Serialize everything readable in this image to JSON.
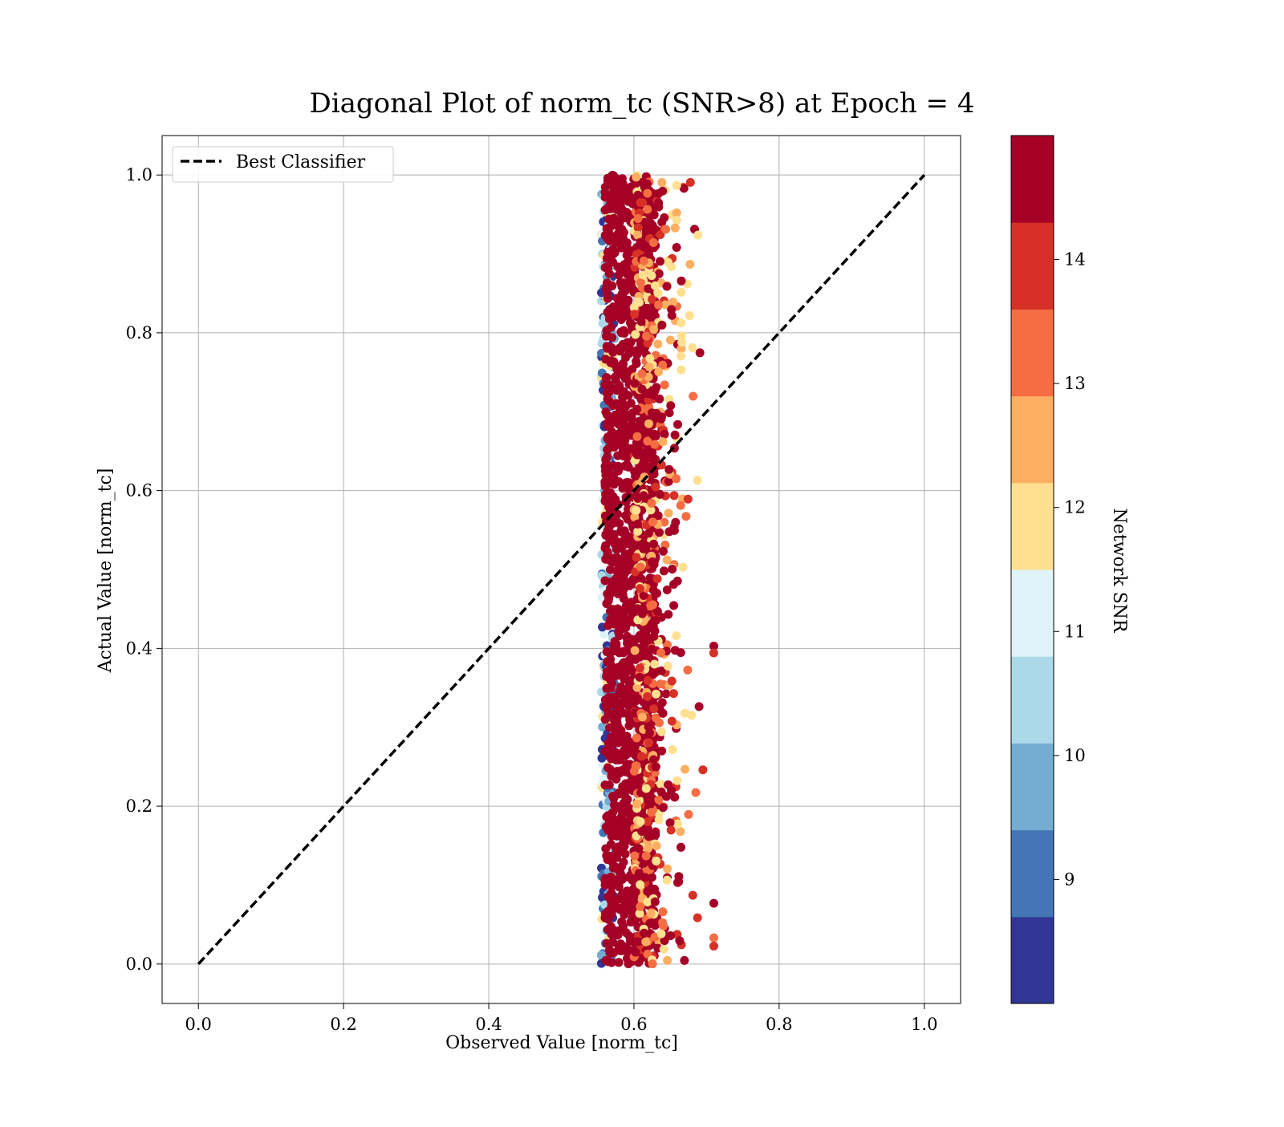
{
  "chart_data": {
    "type": "scatter",
    "title": "Diagonal Plot of norm_tc (SNR>8) at Epoch = 4",
    "xlabel": "Observed Value [norm_tc]",
    "ylabel": "Actual Value [norm_tc]",
    "xlim": [
      -0.05,
      1.05
    ],
    "ylim": [
      -0.05,
      1.05
    ],
    "xticks": [
      "0.0",
      "0.2",
      "0.4",
      "0.6",
      "0.8",
      "1.0"
    ],
    "yticks": [
      "0.0",
      "0.2",
      "0.4",
      "0.6",
      "0.8",
      "1.0"
    ],
    "grid": true,
    "legend": {
      "placement": "top-left",
      "entries": [
        "Best Classifier"
      ]
    },
    "reference_line": {
      "name": "Best Classifier",
      "style": "dashed",
      "color": "#000000",
      "x": [
        0.0,
        1.0
      ],
      "y": [
        0.0,
        1.0
      ]
    },
    "points": {
      "description_x_range": [
        0.55,
        0.71
      ],
      "description_y_range": [
        0.0,
        1.0
      ],
      "core_x_range": [
        0.56,
        0.63
      ],
      "dominant_color": "#a50026"
    },
    "colorbar": {
      "label": "Network SNR",
      "range": [
        8,
        15
      ],
      "ticks": [
        "9",
        "10",
        "11",
        "12",
        "13",
        "14"
      ],
      "tick_values": [
        9,
        10,
        11,
        12,
        13,
        14
      ],
      "colors": [
        "#313695",
        "#4575b4",
        "#74add1",
        "#abd9e9",
        "#e0f3f8",
        "#fee090",
        "#fdae61",
        "#f46d43",
        "#d73027",
        "#a50026"
      ]
    }
  }
}
